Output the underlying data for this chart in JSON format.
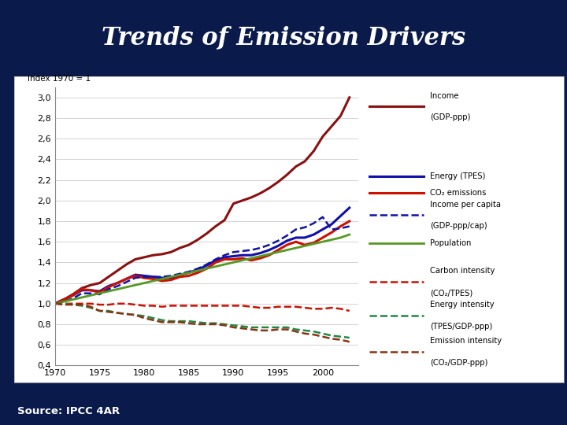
{
  "title": "Trends of Emission Drivers",
  "source": "Source: IPCC 4AR",
  "ylabel": "Index 1970 = 1",
  "years": [
    1970,
    1971,
    1972,
    1973,
    1974,
    1975,
    1976,
    1977,
    1978,
    1979,
    1980,
    1981,
    1982,
    1983,
    1984,
    1985,
    1986,
    1987,
    1988,
    1989,
    1990,
    1991,
    1992,
    1993,
    1994,
    1995,
    1996,
    1997,
    1998,
    1999,
    2000,
    2001,
    2002,
    2003
  ],
  "ylim": [
    0.4,
    3.1
  ],
  "xlim": [
    1970,
    2004
  ],
  "yticks": [
    0.4,
    0.6,
    0.8,
    1.0,
    1.2,
    1.4,
    1.6,
    1.8,
    2.0,
    2.2,
    2.4,
    2.6,
    2.8,
    3.0
  ],
  "xticks": [
    1970,
    1975,
    1980,
    1985,
    1990,
    1995,
    2000
  ],
  "series": {
    "income_gdp": {
      "label1": "Income",
      "label2": "(GDP-ppp)",
      "color": "#8B1010",
      "lw": 2.2,
      "ls": "solid",
      "values": [
        1.0,
        1.04,
        1.09,
        1.15,
        1.18,
        1.2,
        1.26,
        1.32,
        1.38,
        1.43,
        1.45,
        1.47,
        1.48,
        1.5,
        1.54,
        1.57,
        1.62,
        1.68,
        1.75,
        1.81,
        1.97,
        2.0,
        2.03,
        2.07,
        2.12,
        2.18,
        2.25,
        2.33,
        2.38,
        2.48,
        2.62,
        2.72,
        2.82,
        3.0
      ]
    },
    "energy_tpes": {
      "label1": "Energy (TPES)",
      "label2": "",
      "color": "#1111AA",
      "lw": 2.2,
      "ls": "solid",
      "values": [
        1.0,
        1.04,
        1.08,
        1.13,
        1.13,
        1.12,
        1.17,
        1.2,
        1.24,
        1.28,
        1.27,
        1.26,
        1.25,
        1.25,
        1.28,
        1.3,
        1.33,
        1.37,
        1.42,
        1.45,
        1.46,
        1.47,
        1.47,
        1.49,
        1.52,
        1.56,
        1.61,
        1.64,
        1.64,
        1.67,
        1.72,
        1.77,
        1.85,
        1.93
      ]
    },
    "co2_emissions": {
      "label1": "CO₂ emissions",
      "label2": "",
      "color": "#CC1100",
      "lw": 2.2,
      "ls": "solid",
      "values": [
        1.0,
        1.04,
        1.08,
        1.14,
        1.13,
        1.11,
        1.16,
        1.2,
        1.24,
        1.27,
        1.25,
        1.24,
        1.22,
        1.23,
        1.26,
        1.27,
        1.3,
        1.34,
        1.4,
        1.43,
        1.43,
        1.44,
        1.42,
        1.44,
        1.47,
        1.52,
        1.57,
        1.6,
        1.57,
        1.59,
        1.64,
        1.69,
        1.75,
        1.8
      ]
    },
    "income_per_capita": {
      "label1": "Income per capita",
      "label2": "(GDP-ppp/cap)",
      "color": "#1111AA",
      "lw": 1.8,
      "ls": "dashed",
      "values": [
        1.0,
        1.02,
        1.05,
        1.1,
        1.1,
        1.09,
        1.14,
        1.17,
        1.21,
        1.25,
        1.26,
        1.26,
        1.26,
        1.27,
        1.29,
        1.31,
        1.34,
        1.38,
        1.43,
        1.47,
        1.5,
        1.51,
        1.52,
        1.54,
        1.57,
        1.61,
        1.66,
        1.72,
        1.74,
        1.78,
        1.84,
        1.72,
        1.73,
        1.75
      ]
    },
    "population": {
      "label1": "Population",
      "label2": "",
      "color": "#559922",
      "lw": 2.0,
      "ls": "solid",
      "values": [
        1.0,
        1.02,
        1.04,
        1.06,
        1.08,
        1.1,
        1.12,
        1.14,
        1.16,
        1.18,
        1.2,
        1.22,
        1.24,
        1.26,
        1.28,
        1.3,
        1.32,
        1.34,
        1.36,
        1.38,
        1.4,
        1.42,
        1.44,
        1.46,
        1.48,
        1.5,
        1.52,
        1.54,
        1.56,
        1.58,
        1.6,
        1.62,
        1.64,
        1.67
      ]
    },
    "carbon_intensity": {
      "label1": "Carbon intensity",
      "label2": "(CO₂/TPES)",
      "color": "#CC1100",
      "lw": 1.8,
      "ls": "dashed",
      "values": [
        1.0,
        1.0,
        1.0,
        1.0,
        1.0,
        0.99,
        0.99,
        1.0,
        1.0,
        0.99,
        0.98,
        0.98,
        0.97,
        0.98,
        0.98,
        0.98,
        0.98,
        0.98,
        0.98,
        0.98,
        0.98,
        0.98,
        0.97,
        0.96,
        0.96,
        0.97,
        0.97,
        0.97,
        0.96,
        0.95,
        0.95,
        0.96,
        0.95,
        0.93
      ]
    },
    "energy_intensity": {
      "label1": "Energy intensity",
      "label2": "(TPES/GDP-ppp)",
      "color": "#228844",
      "lw": 1.8,
      "ls": "dashed",
      "values": [
        1.0,
        1.0,
        0.99,
        0.98,
        0.96,
        0.93,
        0.93,
        0.91,
        0.9,
        0.89,
        0.88,
        0.86,
        0.84,
        0.83,
        0.83,
        0.83,
        0.82,
        0.81,
        0.81,
        0.8,
        0.79,
        0.78,
        0.77,
        0.77,
        0.77,
        0.77,
        0.77,
        0.75,
        0.74,
        0.73,
        0.71,
        0.69,
        0.68,
        0.67
      ]
    },
    "emission_intensity": {
      "label1": "Emission intensity",
      "label2": "(CO₂/GDP-ppp)",
      "color": "#883311",
      "lw": 1.8,
      "ls": "dashed",
      "values": [
        1.0,
        0.99,
        0.99,
        0.99,
        0.97,
        0.93,
        0.92,
        0.91,
        0.9,
        0.89,
        0.86,
        0.84,
        0.82,
        0.82,
        0.82,
        0.81,
        0.8,
        0.8,
        0.8,
        0.79,
        0.77,
        0.76,
        0.75,
        0.74,
        0.74,
        0.75,
        0.75,
        0.73,
        0.71,
        0.7,
        0.68,
        0.66,
        0.65,
        0.63
      ]
    }
  },
  "bg_outer": "#0a1a4a",
  "bg_panel": "#ffffff",
  "title_color": "white"
}
